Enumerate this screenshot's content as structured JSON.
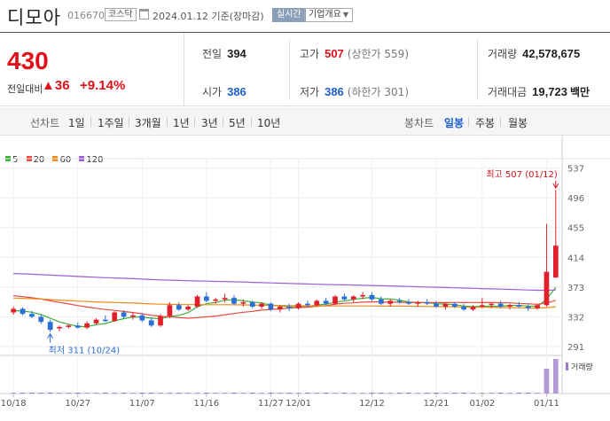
{
  "header": {
    "name": "디모아",
    "code": "016670",
    "market": "코스닥",
    "date": "2024.01.12 기준(장마감)",
    "realtime": "실시간",
    "company_info": "기업개요"
  },
  "price": {
    "current": "430",
    "change_label": "전일대비",
    "change": "▲36",
    "change_pct": "+9.14%"
  },
  "stats": {
    "prev_label": "전일",
    "prev": "394",
    "open_label": "시가",
    "open": "386",
    "high_label": "고가",
    "high": "507",
    "high_limit": "(상한가 559)",
    "low_label": "저가",
    "low": "386",
    "low_limit": "(하한가 301)",
    "volume_label": "거래량",
    "volume": "42,578,675",
    "value_label": "거래대금",
    "value": "19,723",
    "value_unit": "백만"
  },
  "period_bar": {
    "line_label": "선차트",
    "line_periods": [
      "1일",
      "1주일",
      "3개월",
      "1년",
      "3년",
      "5년",
      "10년"
    ],
    "candle_label": "봉차트",
    "candle_periods": [
      "일봉",
      "주봉",
      "월봉"
    ],
    "selected": "일봉"
  },
  "legend": [
    {
      "name": "5",
      "color": "#3dae3a"
    },
    {
      "name": "20",
      "color": "#e84a3d"
    },
    {
      "name": "60",
      "color": "#f08a1e"
    },
    {
      "name": "120",
      "color": "#9a5ed8"
    }
  ],
  "chart_data": {
    "type": "candlestick",
    "y_ticks": [
      "537",
      "496",
      "455",
      "414",
      "373",
      "332",
      "291"
    ],
    "ylim": [
      280,
      545
    ],
    "x_ticks": [
      "10/18",
      "10/27",
      "11/07",
      "11/16",
      "11/27",
      "12/01",
      "12/12",
      "12/21",
      "01/02",
      "01/11"
    ],
    "x_tick_index": [
      0,
      7,
      14,
      21,
      28,
      31,
      39,
      46,
      51,
      58
    ],
    "max_annotation": "최고 507 (01/12)",
    "min_annotation": "최저 311 (10/24)",
    "volume_label": "거래량",
    "up_color": "#e0202a",
    "down_color": "#2a6fd6",
    "candles": [
      [
        0,
        338,
        346,
        335,
        343
      ],
      [
        1,
        343,
        345,
        334,
        336
      ],
      [
        2,
        336,
        340,
        330,
        332
      ],
      [
        3,
        332,
        335,
        322,
        325
      ],
      [
        4,
        325,
        328,
        311,
        314
      ],
      [
        5,
        316,
        320,
        312,
        318
      ],
      [
        6,
        318,
        322,
        316,
        320
      ],
      [
        7,
        320,
        324,
        316,
        317
      ],
      [
        8,
        317,
        326,
        315,
        323
      ],
      [
        9,
        323,
        330,
        321,
        328
      ],
      [
        10,
        328,
        334,
        325,
        326
      ],
      [
        11,
        326,
        340,
        325,
        338
      ],
      [
        12,
        338,
        341,
        330,
        332
      ],
      [
        13,
        332,
        338,
        328,
        334
      ],
      [
        14,
        334,
        337,
        325,
        327
      ],
      [
        15,
        327,
        331,
        318,
        320
      ],
      [
        16,
        320,
        336,
        318,
        333
      ],
      [
        17,
        333,
        352,
        330,
        348
      ],
      [
        18,
        348,
        352,
        340,
        342
      ],
      [
        19,
        342,
        348,
        340,
        346
      ],
      [
        20,
        346,
        362,
        344,
        360
      ],
      [
        21,
        360,
        366,
        352,
        354
      ],
      [
        22,
        354,
        358,
        350,
        356
      ],
      [
        23,
        356,
        364,
        352,
        358
      ],
      [
        24,
        358,
        362,
        348,
        350
      ],
      [
        25,
        350,
        356,
        346,
        352
      ],
      [
        26,
        352,
        354,
        344,
        346
      ],
      [
        27,
        346,
        352,
        343,
        350
      ],
      [
        28,
        350,
        352,
        340,
        342
      ],
      [
        29,
        342,
        348,
        338,
        346
      ],
      [
        30,
        346,
        350,
        340,
        344
      ],
      [
        31,
        344,
        352,
        342,
        350
      ],
      [
        32,
        350,
        354,
        346,
        348
      ],
      [
        33,
        348,
        356,
        346,
        354
      ],
      [
        34,
        354,
        358,
        348,
        350
      ],
      [
        35,
        350,
        362,
        348,
        360
      ],
      [
        36,
        360,
        364,
        354,
        356
      ],
      [
        37,
        356,
        362,
        352,
        360
      ],
      [
        38,
        360,
        366,
        356,
        362
      ],
      [
        39,
        362,
        366,
        354,
        356
      ],
      [
        40,
        356,
        360,
        348,
        350
      ],
      [
        41,
        350,
        356,
        346,
        354
      ],
      [
        42,
        354,
        358,
        350,
        352
      ],
      [
        43,
        352,
        356,
        348,
        350
      ],
      [
        44,
        350,
        354,
        346,
        352
      ],
      [
        45,
        352,
        356,
        348,
        350
      ],
      [
        46,
        350,
        354,
        344,
        346
      ],
      [
        47,
        346,
        352,
        342,
        350
      ],
      [
        48,
        350,
        352,
        344,
        346
      ],
      [
        49,
        346,
        350,
        340,
        342
      ],
      [
        50,
        342,
        348,
        340,
        346
      ],
      [
        51,
        346,
        358,
        344,
        348
      ],
      [
        52,
        348,
        352,
        344,
        350
      ],
      [
        53,
        350,
        354,
        344,
        346
      ],
      [
        54,
        346,
        350,
        342,
        348
      ],
      [
        55,
        348,
        352,
        344,
        346
      ],
      [
        56,
        346,
        350,
        340,
        344
      ],
      [
        57,
        344,
        350,
        342,
        348
      ],
      [
        58,
        348,
        460,
        346,
        394
      ],
      [
        59,
        386,
        507,
        386,
        430
      ]
    ],
    "volumes": [
      0.02,
      0.02,
      0.02,
      0.02,
      0.03,
      0.02,
      0.02,
      0.02,
      0.02,
      0.02,
      0.02,
      0.03,
      0.02,
      0.02,
      0.02,
      0.02,
      0.02,
      0.03,
      0.02,
      0.02,
      0.03,
      0.02,
      0.02,
      0.02,
      0.02,
      0.02,
      0.02,
      0.02,
      0.02,
      0.02,
      0.02,
      0.02,
      0.02,
      0.02,
      0.02,
      0.02,
      0.02,
      0.02,
      0.02,
      0.02,
      0.02,
      0.02,
      0.02,
      0.02,
      0.02,
      0.02,
      0.02,
      0.02,
      0.02,
      0.02,
      0.02,
      0.02,
      0.02,
      0.02,
      0.02,
      0.02,
      0.02,
      0.02,
      0.72,
      1.0
    ]
  }
}
